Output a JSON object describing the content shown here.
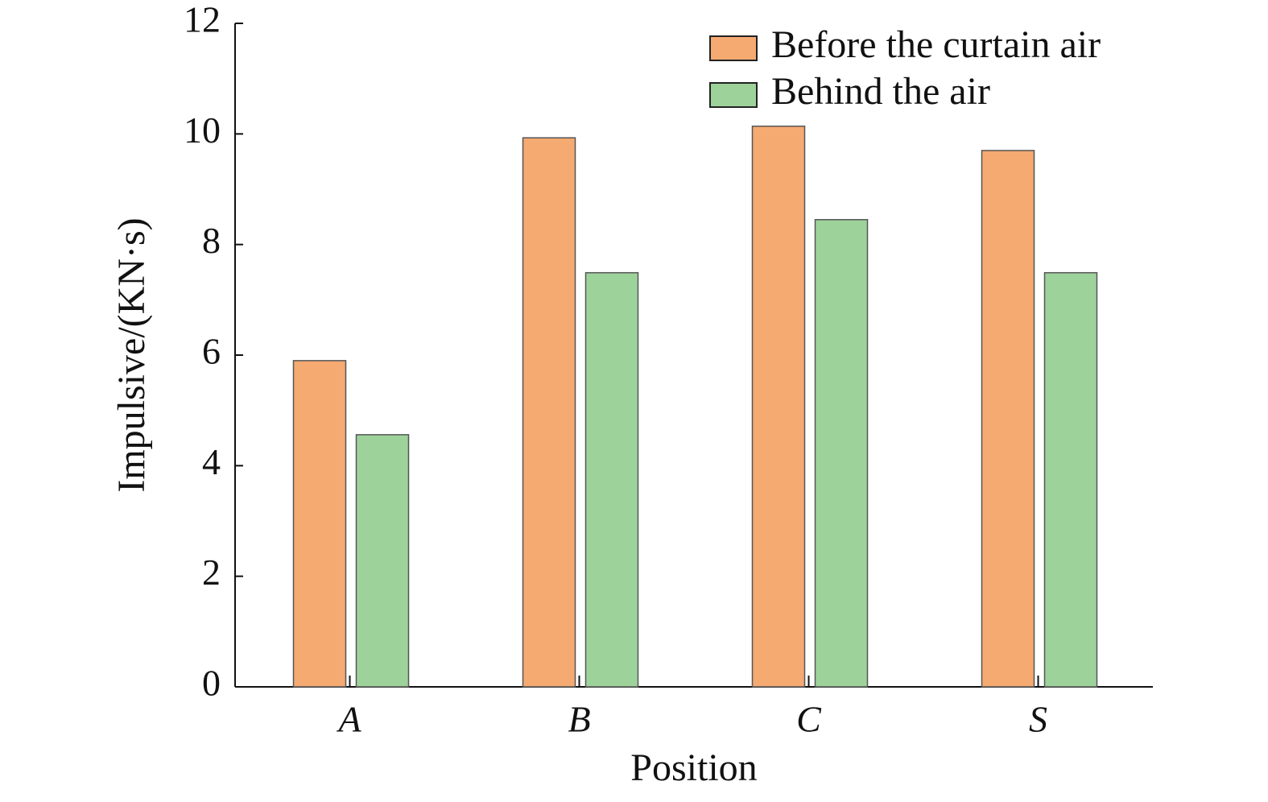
{
  "chart_data": {
    "type": "bar",
    "categories": [
      "A",
      "B",
      "C",
      "S"
    ],
    "series": [
      {
        "name": "Before the curtain air",
        "color": "#f5aa72",
        "values": [
          5.9,
          9.93,
          10.14,
          9.7
        ]
      },
      {
        "name": "Behind the air",
        "color": "#9dd39a",
        "values": [
          4.56,
          7.49,
          8.45,
          7.49
        ]
      }
    ],
    "x_label": "Position",
    "y_label": "Impulsive/(KN·s)",
    "ylim": [
      0,
      12
    ],
    "yticks": [
      0,
      2,
      4,
      6,
      8,
      10,
      12
    ],
    "grid": false,
    "legend": "upper right"
  }
}
